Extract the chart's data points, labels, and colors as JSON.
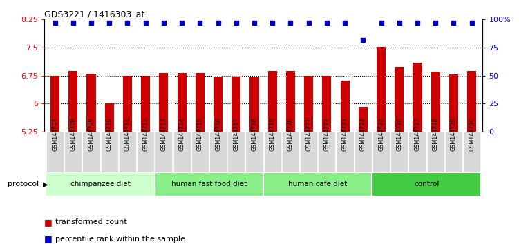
{
  "title": "GDS3221 / 1416303_at",
  "samples": [
    "GSM144707",
    "GSM144708",
    "GSM144709",
    "GSM144710",
    "GSM144711",
    "GSM144712",
    "GSM144713",
    "GSM144714",
    "GSM144715",
    "GSM144716",
    "GSM144717",
    "GSM144718",
    "GSM144719",
    "GSM144720",
    "GSM144721",
    "GSM144722",
    "GSM144723",
    "GSM144724",
    "GSM144725",
    "GSM144726",
    "GSM144727",
    "GSM144728",
    "GSM144729",
    "GSM144730"
  ],
  "bar_values": [
    6.75,
    6.88,
    6.8,
    6.0,
    6.75,
    6.74,
    6.82,
    6.82,
    6.82,
    6.7,
    6.72,
    6.7,
    6.87,
    6.87,
    6.75,
    6.75,
    6.62,
    5.92,
    7.52,
    6.98,
    7.1,
    6.85,
    6.78,
    6.88
  ],
  "percentile_values": [
    97,
    97,
    97,
    97,
    97,
    97,
    97,
    97,
    97,
    97,
    97,
    97,
    97,
    97,
    97,
    97,
    97,
    82,
    97,
    97,
    97,
    97,
    97,
    97
  ],
  "groups": [
    {
      "label": "chimpanzee diet",
      "start": 0,
      "end": 6,
      "color": "#ccffcc"
    },
    {
      "label": "human fast food diet",
      "start": 6,
      "end": 12,
      "color": "#88ee88"
    },
    {
      "label": "human cafe diet",
      "start": 12,
      "end": 18,
      "color": "#88ee88"
    },
    {
      "label": "control",
      "start": 18,
      "end": 24,
      "color": "#44cc44"
    }
  ],
  "ylim": [
    5.25,
    8.25
  ],
  "yticks": [
    5.25,
    6.0,
    6.75,
    7.5,
    8.25
  ],
  "ytick_labels": [
    "5.25",
    "6",
    "6.75",
    "7.5",
    "8.25"
  ],
  "right_yticks": [
    0,
    25,
    50,
    75,
    100
  ],
  "right_ytick_labels": [
    "0",
    "25",
    "50",
    "75",
    "100%"
  ],
  "hgrid_lines": [
    6.0,
    6.75,
    7.5
  ],
  "bar_color": "#cc0000",
  "dot_color": "#0000cc",
  "bar_width": 0.5,
  "protocol_label": "protocol",
  "legend_items": [
    {
      "label": "transformed count",
      "color": "#cc0000"
    },
    {
      "label": "percentile rank within the sample",
      "color": "#0000cc"
    }
  ]
}
